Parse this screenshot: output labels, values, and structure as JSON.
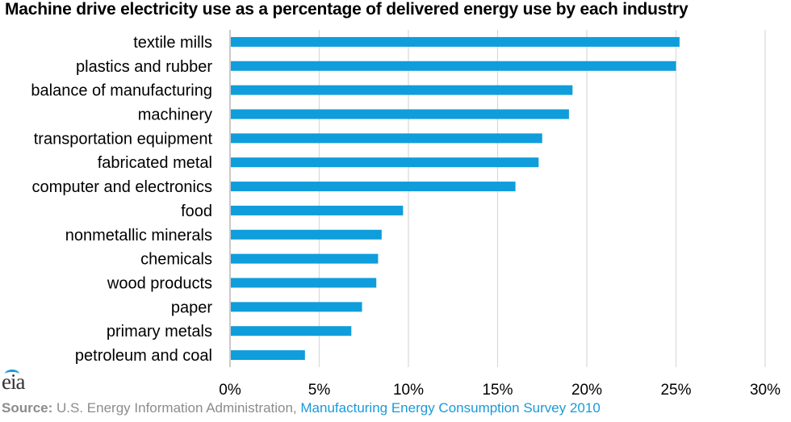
{
  "chart_data": {
    "type": "bar",
    "orientation": "horizontal",
    "title": "Machine drive electricity use as a percentage of delivered energy use by each industry",
    "categories": [
      "textile mills",
      "plastics and rubber",
      "balance of manufacturing",
      "machinery",
      "transportation equipment",
      "fabricated metal",
      "computer and electronics",
      "food",
      "nonmetallic minerals",
      "chemicals",
      "wood products",
      "paper",
      "primary metals",
      "petroleum and coal"
    ],
    "values": [
      25.2,
      25.0,
      19.2,
      19.0,
      17.5,
      17.3,
      16.0,
      9.7,
      8.5,
      8.3,
      8.2,
      7.4,
      6.8,
      4.2
    ],
    "xlim": [
      0,
      30
    ],
    "xticks": [
      "0%",
      "5%",
      "10%",
      "15%",
      "20%",
      "25%",
      "30%"
    ],
    "grid": true,
    "bar_color": "#0f9ddb"
  },
  "logo": "eia",
  "source": {
    "label": "Source:",
    "text": " U.S. Energy Information Administration, ",
    "link": "Manufacturing Energy Consumption Survey 2010"
  }
}
